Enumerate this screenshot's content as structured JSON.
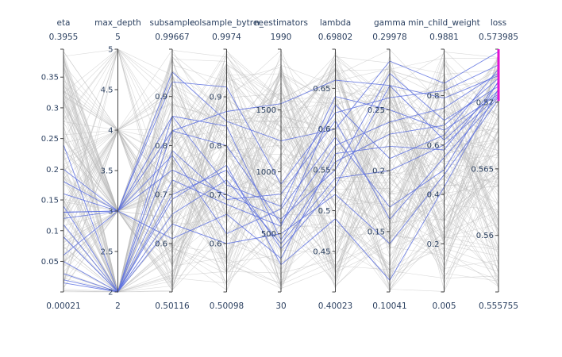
{
  "chart_data": {
    "type": "parallel_coordinates",
    "color_selected": "#5b6ee1",
    "color_unselected": "#b9b9b9",
    "color_brush": "#e310d1",
    "dimensions": [
      {
        "name": "eta",
        "min": 0.00021,
        "max": 0.3955,
        "min_label": "0.00021",
        "max_label": "0.3955",
        "ticks": [
          0.05,
          0.1,
          0.15,
          0.2,
          0.25,
          0.3,
          0.35
        ],
        "tick_labels": [
          "0.05",
          "0.1",
          "0.15",
          "0.2",
          "0.25",
          "0.3",
          "0.35"
        ]
      },
      {
        "name": "max_depth",
        "min": 2,
        "max": 5,
        "min_label": "2",
        "max_label": "5",
        "ticks": [
          2,
          2.5,
          3,
          3.5,
          4,
          4.5,
          5
        ],
        "tick_labels": [
          "2",
          "2.5",
          "3",
          "3.5",
          "4",
          "4.5",
          "5"
        ]
      },
      {
        "name": "subsample",
        "min": 0.50116,
        "max": 0.99667,
        "min_label": "0.50116",
        "max_label": "0.99667",
        "ticks": [
          0.6,
          0.7,
          0.8,
          0.9
        ],
        "tick_labels": [
          "0.6",
          "0.7",
          "0.8",
          "0.9"
        ]
      },
      {
        "name": "colsample_bytree",
        "min": 0.50098,
        "max": 0.9974,
        "min_label": "0.50098",
        "max_label": "0.9974",
        "ticks": [
          0.6,
          0.7,
          0.8,
          0.9
        ],
        "tick_labels": [
          "0.6",
          "0.7",
          "0.8",
          "0.9"
        ]
      },
      {
        "name": "n_estimators",
        "min": 30,
        "max": 1990,
        "min_label": "30",
        "max_label": "1990",
        "ticks": [
          500,
          1000,
          1500
        ],
        "tick_labels": [
          "500",
          "1000",
          "1500"
        ]
      },
      {
        "name": "lambda",
        "min": 0.40023,
        "max": 0.69802,
        "min_label": "0.40023",
        "max_label": "0.69802",
        "ticks": [
          0.45,
          0.5,
          0.55,
          0.6,
          0.65
        ],
        "tick_labels": [
          "0.45",
          "0.5",
          "0.55",
          "0.6",
          "0.65"
        ]
      },
      {
        "name": "gamma",
        "min": 0.10041,
        "max": 0.29978,
        "min_label": "0.10041",
        "max_label": "0.29978",
        "ticks": [
          0.15,
          0.2,
          0.25
        ],
        "tick_labels": [
          "0.15",
          "0.2",
          "0.25"
        ]
      },
      {
        "name": "min_child_weight",
        "min": 0.005,
        "max": 0.9881,
        "min_label": "0.005",
        "max_label": "0.9881",
        "ticks": [
          0.2,
          0.4,
          0.6,
          0.8
        ],
        "tick_labels": [
          "0.2",
          "0.4",
          "0.6",
          "0.8"
        ]
      },
      {
        "name": "loss",
        "min": 0.555755,
        "max": 0.573985,
        "min_label": "0.555755",
        "max_label": "0.573985",
        "ticks": [
          0.56,
          0.565,
          0.57
        ],
        "tick_labels": [
          "0.56",
          "0.565",
          "0.57"
        ],
        "constraint_range": [
          0.5701,
          0.573985
        ]
      }
    ],
    "selected_lines": [
      [
        0.12,
        3,
        0.93,
        0.92,
        900,
        0.62,
        0.26,
        0.82,
        0.5728
      ],
      [
        0.14,
        2,
        0.83,
        0.8,
        580,
        0.58,
        0.24,
        0.75,
        0.5722
      ],
      [
        0.05,
        2,
        0.86,
        0.84,
        450,
        0.56,
        0.23,
        0.68,
        0.5718
      ],
      [
        0.2,
        3,
        0.75,
        0.7,
        620,
        0.55,
        0.28,
        0.7,
        0.5712
      ],
      [
        0.03,
        2,
        0.7,
        0.75,
        380,
        0.53,
        0.27,
        0.62,
        0.5709
      ],
      [
        0.13,
        3,
        0.61,
        0.66,
        300,
        0.57,
        0.22,
        0.58,
        0.5715
      ],
      [
        0.11,
        2,
        0.79,
        0.69,
        820,
        0.61,
        0.16,
        0.55,
        0.5704
      ],
      [
        0.16,
        3,
        0.86,
        0.72,
        720,
        0.64,
        0.25,
        0.66,
        0.5706
      ],
      [
        0.09,
        2,
        0.64,
        0.6,
        500,
        0.52,
        0.14,
        0.48,
        0.5702
      ],
      [
        0.06,
        3,
        0.95,
        0.85,
        1250,
        0.6,
        0.29,
        0.85,
        0.5738
      ],
      [
        0.24,
        2,
        0.69,
        0.76,
        250,
        0.49,
        0.11,
        0.43,
        0.571
      ],
      [
        0.015,
        2,
        0.73,
        0.68,
        560,
        0.63,
        0.21,
        0.64,
        0.5725
      ],
      [
        0.13,
        3,
        0.83,
        0.87,
        1550,
        0.66,
        0.27,
        0.79,
        0.572
      ],
      [
        0.02,
        2,
        0.66,
        0.73,
        420,
        0.54,
        0.2,
        0.6,
        0.5705
      ],
      [
        0.18,
        3,
        0.78,
        0.62,
        700,
        0.59,
        0.17,
        0.5,
        0.5716
      ]
    ],
    "background_line_count": 150
  }
}
